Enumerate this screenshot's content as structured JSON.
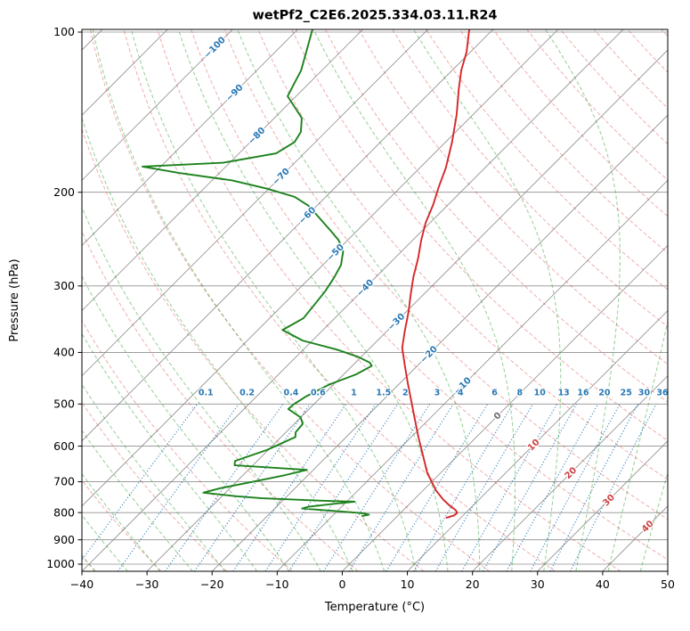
{
  "title": "wetPf2_C2E6.2025.334.03.11.R24",
  "chart_data": {
    "type": "skewt",
    "title": "wetPf2_C2E6.2025.334.03.11.R24",
    "xlabel": "Temperature (°C)",
    "ylabel": "Pressure (hPa)",
    "x_range": [
      -40,
      50
    ],
    "pressure_range": [
      1031.6,
      98.85
    ],
    "skew": "45deg",
    "x_ticks": [
      {
        "v": -40,
        "t": "−40"
      },
      {
        "v": -30,
        "t": "−30"
      },
      {
        "v": -20,
        "t": "−20"
      },
      {
        "v": -10,
        "t": "−10"
      },
      {
        "v": 0,
        "t": "0"
      },
      {
        "v": 10,
        "t": "10"
      },
      {
        "v": 20,
        "t": "20"
      },
      {
        "v": 30,
        "t": "30"
      },
      {
        "v": 40,
        "t": "40"
      },
      {
        "v": 50,
        "t": "50"
      }
    ],
    "y_ticks": [
      {
        "v": 100,
        "t": "100"
      },
      {
        "v": 200,
        "t": "200"
      },
      {
        "v": 300,
        "t": "300"
      },
      {
        "v": 400,
        "t": "400"
      },
      {
        "v": 500,
        "t": "500"
      },
      {
        "v": 600,
        "t": "600"
      },
      {
        "v": 700,
        "t": "700"
      },
      {
        "v": 800,
        "t": "800"
      },
      {
        "v": 900,
        "t": "900"
      },
      {
        "v": 1000,
        "t": "1000"
      }
    ],
    "isotherms": {
      "start": -160,
      "end": 50,
      "step": 10
    },
    "isotherm_labels": [
      {
        "value": -100,
        "text": "−100"
      },
      {
        "value": -90,
        "text": "−90"
      },
      {
        "value": -80,
        "text": "−80"
      },
      {
        "value": -70,
        "text": "−70"
      },
      {
        "value": -60,
        "text": "−60"
      },
      {
        "value": -50,
        "text": "−50"
      },
      {
        "value": -40,
        "text": "−40"
      },
      {
        "value": -30,
        "text": "−30"
      },
      {
        "value": -20,
        "text": "−20"
      },
      {
        "value": -10,
        "text": "−10"
      },
      {
        "value": 0,
        "text": "0"
      },
      {
        "value": 10,
        "text": "10"
      },
      {
        "value": 20,
        "text": "20"
      },
      {
        "value": 30,
        "text": "30"
      },
      {
        "value": 40,
        "text": "40"
      }
    ],
    "isotherm_label_anchor_theta_K": 328.15,
    "dry_adiabats_c": {
      "start": -40,
      "end": 190,
      "step": 10
    },
    "moist_adiabats_c": {
      "start": -40,
      "end": 45,
      "step": 5
    },
    "mixing_ratio": {
      "values": [
        0.1,
        0.2,
        0.4,
        0.6,
        1,
        1.5,
        2,
        3,
        4,
        6,
        8,
        10,
        13,
        16,
        20,
        25,
        30,
        36
      ],
      "labels": [
        "0.1",
        "0.2",
        "0.4",
        "0.6",
        "1",
        "1.5",
        "2",
        "3",
        "4",
        "6",
        "8",
        "10",
        "13",
        "16",
        "20",
        "25",
        "30",
        "36"
      ],
      "top_pressure": 500,
      "label_pressure": 476
    },
    "temperature_profile": [
      [
        99,
        -63.6
      ],
      [
        109,
        -60.6
      ],
      [
        118,
        -58.6
      ],
      [
        128,
        -56.1
      ],
      [
        143,
        -52.5
      ],
      [
        161,
        -49.0
      ],
      [
        180,
        -46.0
      ],
      [
        196,
        -44.1
      ],
      [
        211,
        -42.3
      ],
      [
        228,
        -40.7
      ],
      [
        246,
        -38.7
      ],
      [
        266,
        -36.4
      ],
      [
        288,
        -34.3
      ],
      [
        311,
        -32.0
      ],
      [
        336,
        -29.6
      ],
      [
        363,
        -27.4
      ],
      [
        392,
        -25.1
      ],
      [
        423,
        -22.0
      ],
      [
        457,
        -18.8
      ],
      [
        494,
        -15.5
      ],
      [
        534,
        -12.2
      ],
      [
        577,
        -8.9
      ],
      [
        623,
        -5.5
      ],
      [
        673,
        -2.1
      ],
      [
        727,
        2.0
      ],
      [
        755,
        4.4
      ],
      [
        776,
        6.4
      ],
      [
        791,
        8.0
      ],
      [
        801,
        8.7
      ],
      [
        810,
        8.6
      ],
      [
        818,
        7.8
      ]
    ],
    "dewpoint_profile": [
      [
        99,
        -87.7
      ],
      [
        110,
        -85.0
      ],
      [
        118,
        -83.2
      ],
      [
        126,
        -82.1
      ],
      [
        132,
        -81.3
      ],
      [
        138,
        -78.7
      ],
      [
        145,
        -75.8
      ],
      [
        154,
        -73.8
      ],
      [
        161,
        -73.2
      ],
      [
        169,
        -74.3
      ],
      [
        176,
        -81.0
      ],
      [
        179,
        -92.8
      ],
      [
        184,
        -86.2
      ],
      [
        190,
        -76.9
      ],
      [
        197,
        -70.2
      ],
      [
        204,
        -64.8
      ],
      [
        212,
        -61.3
      ],
      [
        222,
        -58.2
      ],
      [
        235,
        -54.4
      ],
      [
        246,
        -51.4
      ],
      [
        258,
        -49.0
      ],
      [
        274,
        -47.2
      ],
      [
        290,
        -46.3
      ],
      [
        307,
        -45.6
      ],
      [
        325,
        -45.2
      ],
      [
        345,
        -44.8
      ],
      [
        363,
        -46.2
      ],
      [
        380,
        -41.5
      ],
      [
        395,
        -34.9
      ],
      [
        408,
        -30.4
      ],
      [
        418,
        -27.8
      ],
      [
        424,
        -27.0
      ],
      [
        440,
        -28.1
      ],
      [
        460,
        -30.7
      ],
      [
        484,
        -32.4
      ],
      [
        501,
        -33.1
      ],
      [
        511,
        -33.2
      ],
      [
        530,
        -30.0
      ],
      [
        545,
        -28.7
      ],
      [
        565,
        -28.5
      ],
      [
        577,
        -27.8
      ],
      [
        610,
        -30.2
      ],
      [
        640,
        -33.4
      ],
      [
        652,
        -32.8
      ],
      [
        665,
        -21.0
      ],
      [
        680,
        -23.5
      ],
      [
        700,
        -27.5
      ],
      [
        720,
        -31.5
      ],
      [
        734,
        -33.4
      ],
      [
        745,
        -28.0
      ],
      [
        752,
        -23.5
      ],
      [
        760,
        -14.0
      ],
      [
        763,
        -8.8
      ],
      [
        770,
        -11.5
      ],
      [
        780,
        -15.1
      ],
      [
        786,
        -15.8
      ],
      [
        796,
        -9.5
      ],
      [
        802,
        -5.8
      ],
      [
        807,
        -4.6
      ],
      [
        812,
        -5.4
      ]
    ],
    "colors": {
      "temperature_line": "#d62728",
      "dewpoint_line": "#1c821c",
      "grid": "#8f8f8f",
      "dry_adiabat": "rgba(214,39,40,0.38)",
      "moist_adiabat": "rgba(44,160,44,0.5)",
      "mixing_ratio": "rgba(31,119,180,0.85)",
      "label_negative": "#2878b5",
      "label_zero": "#6e6e6e",
      "label_positive": "#cc4444",
      "axis": "#000000"
    }
  }
}
